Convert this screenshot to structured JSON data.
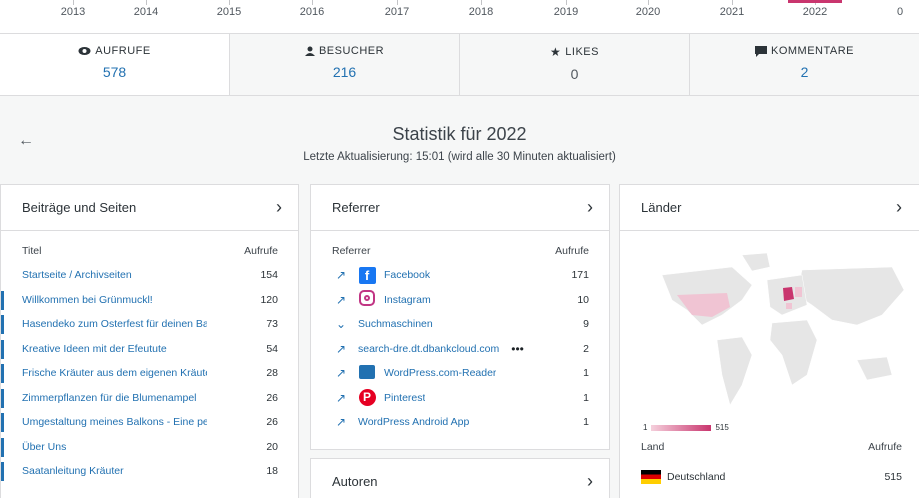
{
  "axis": {
    "years": [
      "2013",
      "2014",
      "2015",
      "2016",
      "2017",
      "2018",
      "2019",
      "2020",
      "2021",
      "2022"
    ],
    "zero_label": "0"
  },
  "tabs": [
    {
      "icon": "eye-icon",
      "label": "AUFRUFE",
      "value": "578"
    },
    {
      "icon": "person-icon",
      "label": "BESUCHER",
      "value": "216"
    },
    {
      "icon": "star-icon",
      "label": "LIKES",
      "value": "0"
    },
    {
      "icon": "comment-icon",
      "label": "KOMMENTARE",
      "value": "2"
    }
  ],
  "page": {
    "title": "Statistik für 2022",
    "subtitle": "Letzte Aktualisierung: 15:01 (wird alle 30 Minuten aktualisiert)"
  },
  "posts": {
    "title": "Beiträge und Seiten",
    "col_title": "Titel",
    "col_views": "Aufrufe",
    "rows": [
      {
        "title": "Startseite / Archivseiten",
        "views": "154"
      },
      {
        "title": "Willkommen bei Grünmuckl!",
        "views": "120"
      },
      {
        "title": "Hasendeko zum Osterfest für deinen Bal",
        "views": "73"
      },
      {
        "title": "Kreative Ideen mit der Efeutute",
        "views": "54"
      },
      {
        "title": "Frische Kräuter aus dem eigenen Kräuter",
        "views": "28"
      },
      {
        "title": "Zimmerpflanzen für die Blumenampel",
        "views": "26"
      },
      {
        "title": "Umgestaltung meines Balkons - Eine pe",
        "views": "26"
      },
      {
        "title": "Über Uns",
        "views": "20"
      },
      {
        "title": "Saatanleitung Kräuter",
        "views": "18"
      }
    ]
  },
  "referrer": {
    "title": "Referrer",
    "col_title": "Referrer",
    "col_views": "Aufrufe",
    "rows": [
      {
        "name": "Facebook",
        "views": "171",
        "icon": "facebook-icon"
      },
      {
        "name": "Instagram",
        "views": "10",
        "icon": "instagram-icon"
      },
      {
        "name": "Suchmaschinen",
        "views": "9",
        "icon": "chevron-down-icon"
      },
      {
        "name": "search-dre.dt.dbankcloud.com",
        "views": "2",
        "icon": "external-link-icon"
      },
      {
        "name": "WordPress.com-Reader",
        "views": "1",
        "icon": "reader-icon"
      },
      {
        "name": "Pinterest",
        "views": "1",
        "icon": "pinterest-icon"
      },
      {
        "name": "WordPress Android App",
        "views": "1",
        "icon": "external-link-icon"
      }
    ],
    "more": "•••"
  },
  "authors": {
    "title": "Autoren"
  },
  "countries": {
    "title": "Länder",
    "legend_min": "1",
    "legend_max": "515",
    "col_title": "Land",
    "col_views": "Aufrufe",
    "rows": [
      {
        "name": "Deutschland",
        "views": "515"
      }
    ]
  },
  "colors": {
    "accent": "#2271b1",
    "map_highlight": "#c9356e"
  }
}
